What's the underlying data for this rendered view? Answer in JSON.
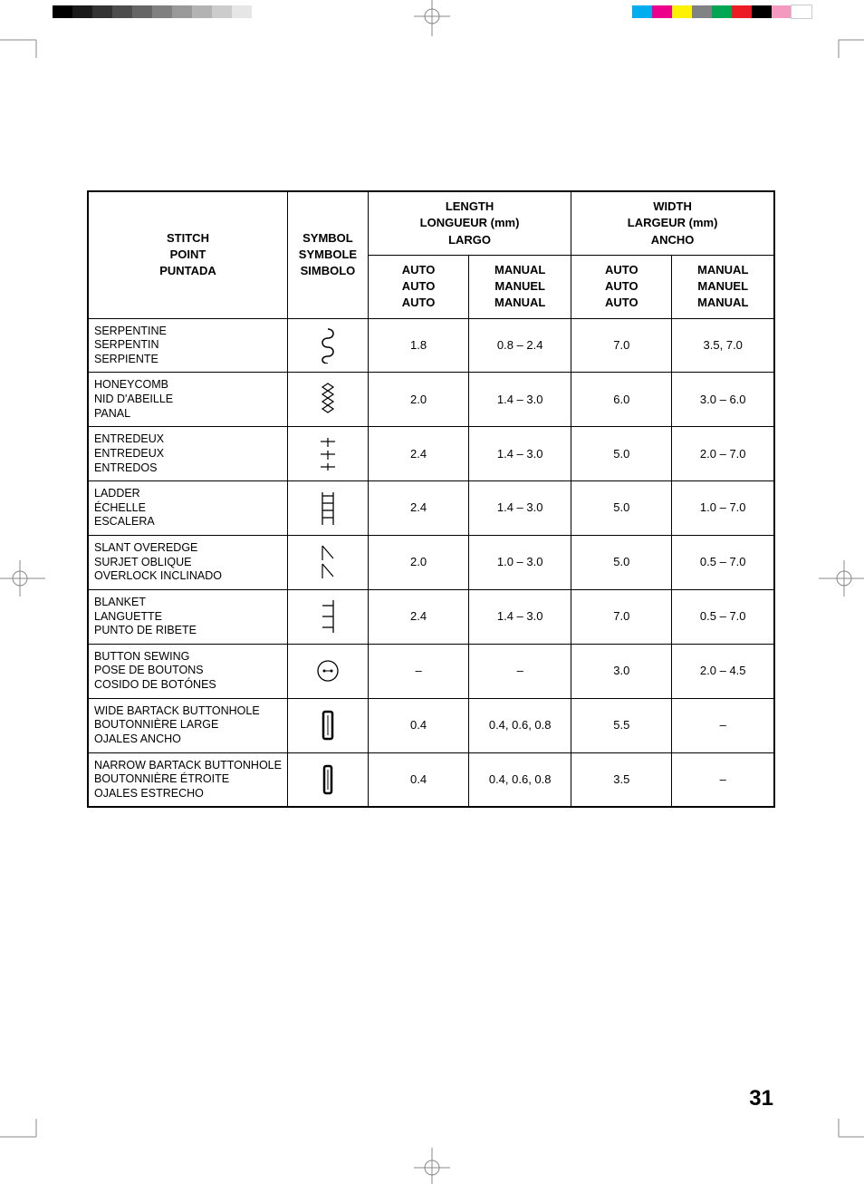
{
  "page_number": "31",
  "printer_marks": {
    "gray_swatch_colors": [
      "#000000",
      "#1a1a1a",
      "#333333",
      "#4d4d4d",
      "#666666",
      "#808080",
      "#999999",
      "#b3b3b3",
      "#cccccc",
      "#e6e6e6"
    ],
    "color_swatch_colors": [
      "#00aeef",
      "#ec008c",
      "#fff200",
      "#808285",
      "#00a651",
      "#ed1c24",
      "#000000",
      "#f49ac1",
      "#ffffff"
    ]
  },
  "table": {
    "header": {
      "stitch": {
        "en": "STITCH",
        "fr": "POINT",
        "es": "PUNTADA"
      },
      "symbol": {
        "en": "SYMBOL",
        "fr": "SYMBOLE",
        "es": "SIMBOLO"
      },
      "length": {
        "group_en": "LENGTH",
        "group_fr": "LONGUEUR (mm)",
        "group_es": "LARGO",
        "auto_en": "AUTO",
        "auto_fr": "AUTO",
        "auto_es": "AUTO",
        "manual_en": "MANUAL",
        "manual_fr": "MANUEL",
        "manual_es": "MANUAL"
      },
      "width": {
        "group_en": "WIDTH",
        "group_fr": "LARGEUR (mm)",
        "group_es": "ANCHO",
        "auto_en": "AUTO",
        "auto_fr": "AUTO",
        "auto_es": "AUTO",
        "manual_en": "MANUAL",
        "manual_fr": "MANUEL",
        "manual_es": "MANUAL"
      }
    },
    "rows": [
      {
        "names": {
          "en": "SERPENTINE",
          "fr": "SERPENTIN",
          "es": "SERPIENTE"
        },
        "symbol": "serpentine",
        "len_auto": "1.8",
        "len_manual": "0.8 – 2.4",
        "wid_auto": "7.0",
        "wid_manual": "3.5, 7.0"
      },
      {
        "names": {
          "en": "HONEYCOMB",
          "fr": "NID D'ABEILLE",
          "es": "PANAL"
        },
        "symbol": "honeycomb",
        "len_auto": "2.0",
        "len_manual": "1.4 – 3.0",
        "wid_auto": "6.0",
        "wid_manual": "3.0 – 6.0"
      },
      {
        "names": {
          "en": "ENTREDEUX",
          "fr": "ENTREDEUX",
          "es": "ENTREDOS"
        },
        "symbol": "entredeux",
        "len_auto": "2.4",
        "len_manual": "1.4 – 3.0",
        "wid_auto": "5.0",
        "wid_manual": "2.0 – 7.0"
      },
      {
        "names": {
          "en": "LADDER",
          "fr": "ÉCHELLE",
          "es": "ESCALERA"
        },
        "symbol": "ladder",
        "len_auto": "2.4",
        "len_manual": "1.4 – 3.0",
        "wid_auto": "5.0",
        "wid_manual": "1.0 – 7.0"
      },
      {
        "names": {
          "en": "SLANT OVEREDGE",
          "fr": "SURJET OBLIQUE",
          "es": "OVERLOCK INCLINADO"
        },
        "symbol": "slant-overedge",
        "len_auto": "2.0",
        "len_manual": "1.0 – 3.0",
        "wid_auto": "5.0",
        "wid_manual": "0.5 – 7.0"
      },
      {
        "names": {
          "en": "BLANKET",
          "fr": "LANGUETTE",
          "es": "PUNTO DE RIBETE"
        },
        "symbol": "blanket",
        "len_auto": "2.4",
        "len_manual": "1.4 – 3.0",
        "wid_auto": "7.0",
        "wid_manual": "0.5 – 7.0"
      },
      {
        "names": {
          "en": "BUTTON SEWING",
          "fr": "POSE DE BOUTONS",
          "es": "COSIDO DE BOTÓNES"
        },
        "symbol": "button-sewing",
        "len_auto": "–",
        "len_manual": "–",
        "wid_auto": "3.0",
        "wid_manual": "2.0 – 4.5"
      },
      {
        "names": {
          "en": "WIDE BARTACK BUTTONHOLE",
          "fr": "BOUTONNIÈRE LARGE",
          "es": "OJALES ANCHO"
        },
        "symbol": "buttonhole-wide",
        "len_auto": "0.4",
        "len_manual": "0.4, 0.6, 0.8",
        "wid_auto": "5.5",
        "wid_manual": "–"
      },
      {
        "names": {
          "en": "NARROW BARTACK BUTTONHOLE",
          "fr": "BOUTONNIÈRE ÉTROITE",
          "es": "OJALES ESTRECHO"
        },
        "symbol": "buttonhole-narrow",
        "len_auto": "0.4",
        "len_manual": "0.4, 0.6, 0.8",
        "wid_auto": "3.5",
        "wid_manual": "–"
      }
    ]
  },
  "symbol_svgs": {
    "serpentine": "<svg width='24' height='40' viewBox='0 0 24 40'><path d='M12 2 C20 2 20 12 12 12 C4 12 4 22 12 22 C20 22 20 32 12 32 C4 32 4 40 12 40' fill='none' stroke='#000' stroke-width='1.5'/></svg>",
    "honeycomb": "<svg width='24' height='40' viewBox='0 0 24 40'><g fill='none' stroke='#000' stroke-width='1.2'><path d='M6 6 L12 2 L18 6 L12 10 Z'/><path d='M6 14 L12 10 L18 14 L12 18 Z'/><path d='M6 22 L12 18 L18 22 L12 26 Z'/><path d='M6 30 L12 26 L18 30 L12 34 Z'/></g></svg>",
    "entredeux": "<svg width='24' height='40' viewBox='0 0 24 40'><g stroke='#000' stroke-width='1.2'><line x1='4' y1='6' x2='20' y2='6'/><line x1='12' y1='2' x2='12' y2='12'/><line x1='4' y1='20' x2='20' y2='20'/><line x1='12' y1='16' x2='12' y2='26'/><line x1='4' y1='34' x2='20' y2='34'/><line x1='12' y1='30' x2='12' y2='38'/></g></svg>",
    "ladder": "<svg width='24' height='40' viewBox='0 0 24 40'><g stroke='#000' stroke-width='1.3' fill='none'><line x1='6' y1='2' x2='6' y2='38'/><line x1='18' y1='2' x2='18' y2='38'/><line x1='6' y1='6' x2='18' y2='6'/><line x1='6' y1='14' x2='18' y2='14'/><line x1='6' y1='22' x2='18' y2='22'/><line x1='6' y1='30' x2='18' y2='30'/></g></svg>",
    "slant-overedge": "<svg width='24' height='40' viewBox='0 0 24 40'><g stroke='#000' stroke-width='1.2' fill='none'><line x1='6' y1='2' x2='6' y2='18'/><line x1='6' y1='2' x2='18' y2='16'/><line x1='6' y1='22' x2='6' y2='38'/><line x1='6' y1='22' x2='18' y2='36'/></g></svg>",
    "blanket": "<svg width='24' height='40' viewBox='0 0 24 40'><g stroke='#000' stroke-width='1.3' fill='none'><line x1='18' y1='2' x2='18' y2='38'/><line x1='6' y1='8' x2='18' y2='8'/><line x1='6' y1='20' x2='18' y2='20'/><line x1='6' y1='32' x2='18' y2='32'/></g></svg>",
    "button-sewing": "<svg width='30' height='30' viewBox='0 0 30 30'><circle cx='15' cy='15' r='11' fill='none' stroke='#000' stroke-width='1.3'/><circle cx='11' cy='15' r='1.5' fill='#000'/><circle cx='19' cy='15' r='1.5' fill='#000'/><line x1='11' y1='15' x2='19' y2='15' stroke='#000' stroke-width='1'/></svg>",
    "buttonhole-wide": "<svg width='18' height='34' viewBox='0 0 18 34'><rect x='4' y='2' width='10' height='30' rx='2' fill='none' stroke='#000' stroke-width='2.5'/><line x1='9' y1='6' x2='9' y2='28' stroke='#000' stroke-width='1'/></svg>",
    "buttonhole-narrow": "<svg width='14' height='34' viewBox='0 0 14 34'><rect x='3' y='2' width='8' height='30' rx='2' fill='none' stroke='#000' stroke-width='2.5'/><line x1='7' y1='6' x2='7' y2='28' stroke='#000' stroke-width='1'/></svg>"
  }
}
